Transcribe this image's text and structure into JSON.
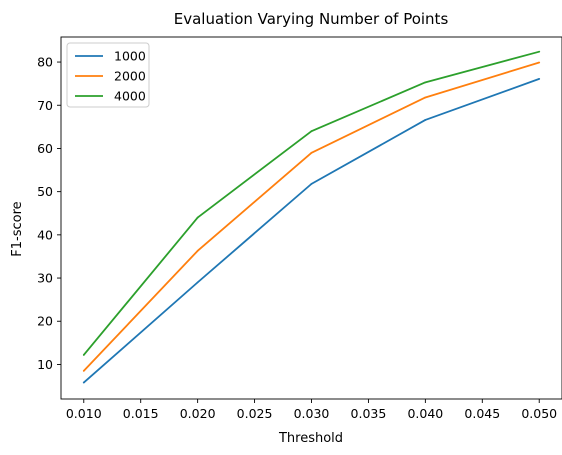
{
  "chart_data": {
    "type": "line",
    "title": "Evaluation Varying Number of Points",
    "xlabel": "Threshold",
    "ylabel": "F1-score",
    "x": [
      0.01,
      0.02,
      0.03,
      0.04,
      0.05
    ],
    "xlim": [
      0.008,
      0.052
    ],
    "ylim": [
      2.0,
      85.8
    ],
    "xticks": [
      "0.010",
      "0.015",
      "0.020",
      "0.025",
      "0.030",
      "0.035",
      "0.040",
      "0.045",
      "0.050"
    ],
    "xtick_values": [
      0.01,
      0.015,
      0.02,
      0.025,
      0.03,
      0.035,
      0.04,
      0.045,
      0.05
    ],
    "yticks": [
      "10",
      "20",
      "30",
      "40",
      "50",
      "60",
      "70",
      "80"
    ],
    "ytick_values": [
      10,
      20,
      30,
      40,
      50,
      60,
      70,
      80
    ],
    "grid": false,
    "legend_position": "top-left",
    "series": [
      {
        "name": "1000",
        "color": "#1f77b4",
        "values": [
          5.8,
          29.0,
          51.8,
          66.6,
          76.1
        ]
      },
      {
        "name": "2000",
        "color": "#ff7f0e",
        "values": [
          8.5,
          36.3,
          59.0,
          71.8,
          79.9
        ]
      },
      {
        "name": "4000",
        "color": "#2ca02c",
        "values": [
          12.2,
          44.0,
          64.0,
          75.3,
          82.4
        ]
      }
    ]
  }
}
